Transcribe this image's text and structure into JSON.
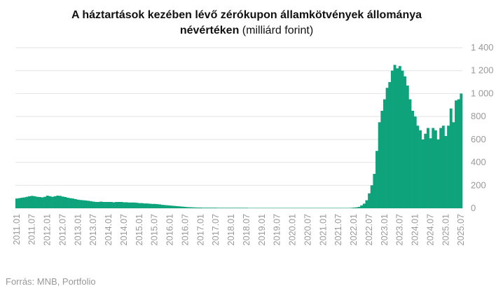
{
  "chart_data": {
    "type": "bar",
    "title": "A háztartások kezében lévő zérókupon államkötvények állománya",
    "title_line2": "névértéken",
    "unit": "(milliárd forint)",
    "source": "Forrás: MNB, Portfolio",
    "color": "#0fa37c",
    "grid": true,
    "ylim": [
      0,
      1400
    ],
    "yticks": [
      0,
      200,
      400,
      600,
      800,
      {
        "value": 1000,
        "label": "1 000"
      },
      {
        "value": 1200,
        "label": "1 200"
      },
      {
        "value": 1400,
        "label": "1 400"
      }
    ],
    "categories": [
      "2011.01",
      null,
      null,
      null,
      null,
      null,
      "2011.07",
      null,
      null,
      null,
      null,
      null,
      "2012.01",
      null,
      null,
      null,
      null,
      null,
      "2012.07",
      null,
      null,
      null,
      null,
      null,
      "2013.01",
      null,
      null,
      null,
      null,
      null,
      "2013.07",
      null,
      null,
      null,
      null,
      null,
      "2014.01",
      null,
      null,
      null,
      null,
      null,
      "2014.07",
      null,
      null,
      null,
      null,
      null,
      "2015.01",
      null,
      null,
      null,
      null,
      null,
      "2015.07",
      null,
      null,
      null,
      null,
      null,
      "2016.01",
      null,
      null,
      null,
      null,
      null,
      "2016.07",
      null,
      null,
      null,
      null,
      null,
      "2017.01",
      null,
      null,
      null,
      null,
      null,
      "2017.07",
      null,
      null,
      null,
      null,
      null,
      "2018.01",
      null,
      null,
      null,
      null,
      null,
      "2018.07",
      null,
      null,
      null,
      null,
      null,
      "2019.01",
      null,
      null,
      null,
      null,
      null,
      "2019.07",
      null,
      null,
      null,
      null,
      null,
      "2020.01",
      null,
      null,
      null,
      null,
      null,
      "2020.07",
      null,
      null,
      null,
      null,
      null,
      "2021.01",
      null,
      null,
      null,
      null,
      null,
      "2021.07",
      null,
      null,
      null,
      null,
      null,
      "2022.01",
      null,
      null,
      null,
      null,
      null,
      "2022.07",
      null,
      null,
      null,
      null,
      null,
      "2023.01",
      null,
      null,
      null,
      null,
      null,
      "2023.07",
      null,
      null,
      null,
      null,
      null,
      "2024.01",
      null,
      null,
      null,
      null,
      null,
      "2024.07",
      null,
      null,
      null,
      null,
      null,
      "2025.01",
      null,
      null,
      null,
      null,
      null,
      "2025.07"
    ],
    "values": [
      85,
      88,
      92,
      95,
      100,
      105,
      108,
      105,
      100,
      98,
      95,
      100,
      110,
      105,
      100,
      105,
      110,
      108,
      102,
      98,
      92,
      88,
      85,
      80,
      75,
      72,
      70,
      68,
      65,
      62,
      58,
      55,
      55,
      58,
      55,
      55,
      55,
      55,
      52,
      55,
      55,
      55,
      52,
      52,
      50,
      50,
      50,
      48,
      45,
      45,
      42,
      42,
      40,
      38,
      38,
      36,
      34,
      30,
      28,
      26,
      24,
      22,
      20,
      18,
      16,
      14,
      12,
      10,
      9,
      8,
      7,
      6,
      6,
      5,
      5,
      5,
      5,
      5,
      5,
      4,
      4,
      4,
      4,
      4,
      4,
      4,
      4,
      4,
      4,
      4,
      4,
      3,
      3,
      3,
      3,
      3,
      3,
      3,
      3,
      3,
      3,
      3,
      3,
      3,
      3,
      3,
      3,
      3,
      3,
      3,
      3,
      3,
      3,
      3,
      3,
      3,
      3,
      3,
      3,
      3,
      3,
      3,
      3,
      3,
      3,
      3,
      3,
      3,
      3,
      3,
      3,
      4,
      6,
      8,
      12,
      25,
      40,
      70,
      130,
      200,
      300,
      500,
      750,
      850,
      950,
      1050,
      1100,
      1200,
      1250,
      1220,
      1240,
      1200,
      1150,
      1070,
      950,
      850,
      800,
      720,
      680,
      600,
      650,
      700,
      610,
      700,
      680,
      600,
      700,
      720,
      630,
      720,
      870,
      750,
      940,
      950,
      1000
    ]
  }
}
